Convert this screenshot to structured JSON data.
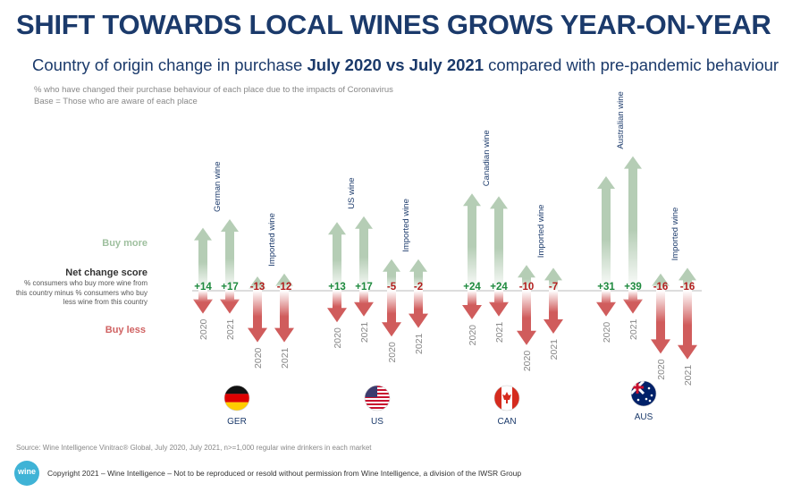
{
  "title": "SHIFT TOWARDS LOCAL WINES GROWS YEAR-ON-YEAR",
  "subtitle": {
    "pre": "Country of origin change in purchase ",
    "bold": "July 2020 vs July 2021",
    "post": " compared with pre-pandemic behaviour"
  },
  "notes": [
    "% who have changed their purchase behaviour of each place due to the impacts of Coronavirus",
    "Base = Those who are aware of each place"
  ],
  "legend": {
    "buy_more": "Buy more",
    "net_title": "Net change score",
    "net_desc": [
      "% consumers who buy more wine from",
      "this country minus % consumers who buy",
      "less wine from this country"
    ],
    "buy_less": "Buy less"
  },
  "source": "Source: Wine Intelligence Vinitrac® Global, July 2020, July 2021, n>=1,000 regular wine drinkers in each market",
  "copyright": "Copyright 2021 – Wine Intelligence – Not to be reproduced or resold without permission from Wine Intelligence, a division of the IWSR Group",
  "logo_text": "wine intelligence",
  "colors": {
    "buy_more": "#b5cdb5",
    "buy_less": "#d05c5c",
    "positive": "#1e8a3e",
    "negative": "#b31d1d",
    "label": "#1b3a6b",
    "year": "#888888"
  },
  "chart_data": {
    "type": "bar",
    "note": "diverging arrows; up = % buy more, down = % buy less (estimated), net printed",
    "markets": [
      {
        "code": "GER",
        "flag": "germany-flag",
        "groups": [
          {
            "label": "German wine",
            "bars": [
              {
                "year": "2020",
                "more": 22,
                "less": 8,
                "net": "+14"
              },
              {
                "year": "2021",
                "more": 25,
                "less": 8,
                "net": "+17"
              }
            ]
          },
          {
            "label": "Imported wine",
            "bars": [
              {
                "year": "2020",
                "more": 5,
                "less": 18,
                "net": "-13"
              },
              {
                "year": "2021",
                "more": 6,
                "less": 18,
                "net": "-12"
              }
            ]
          }
        ]
      },
      {
        "code": "US",
        "flag": "usa-flag",
        "groups": [
          {
            "label": "US wine",
            "bars": [
              {
                "year": "2020",
                "more": 24,
                "less": 11,
                "net": "+13"
              },
              {
                "year": "2021",
                "more": 26,
                "less": 9,
                "net": "+17"
              }
            ]
          },
          {
            "label": "Imported wine",
            "bars": [
              {
                "year": "2020",
                "more": 11,
                "less": 16,
                "net": "-5"
              },
              {
                "year": "2021",
                "more": 11,
                "less": 13,
                "net": "-2"
              }
            ]
          }
        ]
      },
      {
        "code": "CAN",
        "flag": "canada-flag",
        "groups": [
          {
            "label": "Canadian wine",
            "bars": [
              {
                "year": "2020",
                "more": 34,
                "less": 10,
                "net": "+24"
              },
              {
                "year": "2021",
                "more": 33,
                "less": 9,
                "net": "+24"
              }
            ]
          },
          {
            "label": "Imported wine",
            "bars": [
              {
                "year": "2020",
                "more": 9,
                "less": 19,
                "net": "-10"
              },
              {
                "year": "2021",
                "more": 8,
                "less": 15,
                "net": "-7"
              }
            ]
          }
        ]
      },
      {
        "code": "AUS",
        "flag": "australia-flag",
        "groups": [
          {
            "label": "Australian wine",
            "bars": [
              {
                "year": "2020",
                "more": 40,
                "less": 9,
                "net": "+31"
              },
              {
                "year": "2021",
                "more": 47,
                "less": 8,
                "net": "+39"
              }
            ]
          },
          {
            "label": "Imported wine",
            "bars": [
              {
                "year": "2020",
                "more": 6,
                "less": 22,
                "net": "-16"
              },
              {
                "year": "2021",
                "more": 8,
                "less": 24,
                "net": "-16"
              }
            ]
          }
        ]
      }
    ]
  }
}
